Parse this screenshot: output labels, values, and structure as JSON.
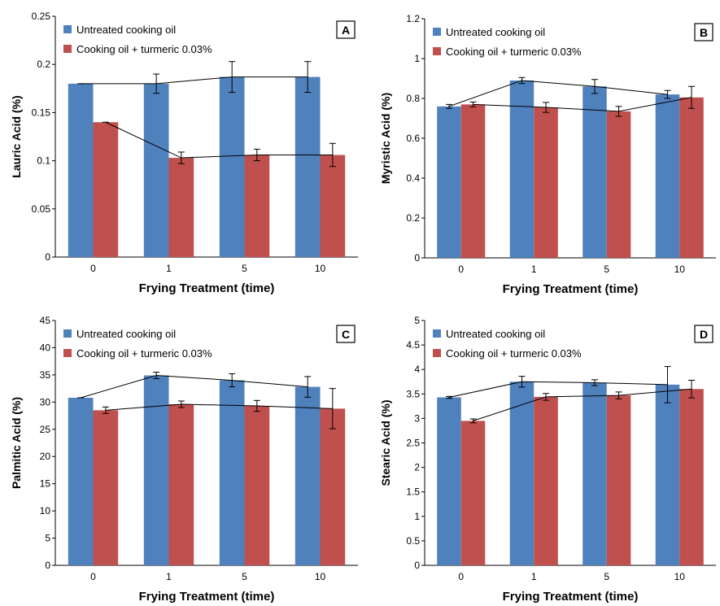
{
  "colors": {
    "untreated": "#4f81bd",
    "turmeric": "#c0504d",
    "axis": "#000000"
  },
  "chart_data": [
    {
      "type": "bar",
      "panel_label": "A",
      "categories": [
        "0",
        "1",
        "5",
        "10"
      ],
      "xlabel": "Frying Treatment (time)",
      "ylabel": "Lauric Acid (%)",
      "ylim": [
        0,
        0.25
      ],
      "yticks": [
        "0",
        "0.05",
        "0.1",
        "0.15",
        "0.2",
        "0.25"
      ],
      "legend_position": "top-left",
      "series": [
        {
          "name": "Untreated cooking oil",
          "color": "#4f81bd",
          "values": [
            0.18,
            0.18,
            0.187,
            0.187
          ],
          "errors": [
            0.0,
            0.01,
            0.016,
            0.016
          ],
          "trendline": true
        },
        {
          "name": "Cooking oil + turmeric 0.03%",
          "color": "#c0504d",
          "values": [
            0.14,
            0.103,
            0.106,
            0.106
          ],
          "errors": [
            0.0,
            0.006,
            0.006,
            0.012
          ],
          "trendline": true
        }
      ]
    },
    {
      "type": "bar",
      "panel_label": "B",
      "categories": [
        "0",
        "1",
        "5",
        "10"
      ],
      "xlabel": "Frying Treatment (time)",
      "ylabel": "Myristic Acid (%)",
      "ylim": [
        0,
        1.2
      ],
      "yticks": [
        "0",
        "0.2",
        "0.4",
        "0.6",
        "0.8",
        "1",
        "1.2"
      ],
      "legend_position": "top-left",
      "series": [
        {
          "name": "Untreated cooking oil",
          "color": "#4f81bd",
          "values": [
            0.76,
            0.89,
            0.86,
            0.82
          ],
          "errors": [
            0.01,
            0.015,
            0.035,
            0.02
          ],
          "trendline": true
        },
        {
          "name": "Cooking oil + turmeric 0.03%",
          "color": "#c0504d",
          "values": [
            0.77,
            0.755,
            0.735,
            0.805
          ],
          "errors": [
            0.012,
            0.025,
            0.025,
            0.055
          ],
          "trendline": true
        }
      ]
    },
    {
      "type": "bar",
      "panel_label": "C",
      "categories": [
        "0",
        "1",
        "5",
        "10"
      ],
      "xlabel": "Frying Treatment (time)",
      "ylabel": "Palmitic Acid (%)",
      "ylim": [
        0,
        45
      ],
      "yticks": [
        "0",
        "5",
        "10",
        "15",
        "20",
        "25",
        "30",
        "35",
        "40",
        "45"
      ],
      "legend_position": "top-left",
      "series": [
        {
          "name": "Untreated cooking oil",
          "color": "#4f81bd",
          "values": [
            30.8,
            34.9,
            34.0,
            32.8
          ],
          "errors": [
            0.0,
            0.6,
            1.2,
            1.9
          ],
          "trendline": true
        },
        {
          "name": "Cooking oil + turmeric 0.03%",
          "color": "#c0504d",
          "values": [
            28.5,
            29.6,
            29.3,
            28.8
          ],
          "errors": [
            0.6,
            0.6,
            1.0,
            3.7
          ],
          "trendline": true
        }
      ]
    },
    {
      "type": "bar",
      "panel_label": "D",
      "categories": [
        "0",
        "1",
        "5",
        "10"
      ],
      "xlabel": "Frying Treatment (time)",
      "ylabel": "Stearic Acid (%)",
      "ylim": [
        0,
        5
      ],
      "yticks": [
        "0",
        "0.5",
        "1",
        "1.5",
        "2",
        "2.5",
        "3",
        "3.5",
        "4",
        "4.5",
        "5"
      ],
      "legend_position": "top-left",
      "series": [
        {
          "name": "Untreated cooking oil",
          "color": "#4f81bd",
          "values": [
            3.43,
            3.75,
            3.73,
            3.69
          ],
          "errors": [
            0.02,
            0.11,
            0.06,
            0.37
          ],
          "trendline": true
        },
        {
          "name": "Cooking oil + turmeric 0.03%",
          "color": "#c0504d",
          "values": [
            2.95,
            3.44,
            3.47,
            3.6
          ],
          "errors": [
            0.04,
            0.07,
            0.07,
            0.18
          ],
          "trendline": true
        }
      ]
    }
  ]
}
